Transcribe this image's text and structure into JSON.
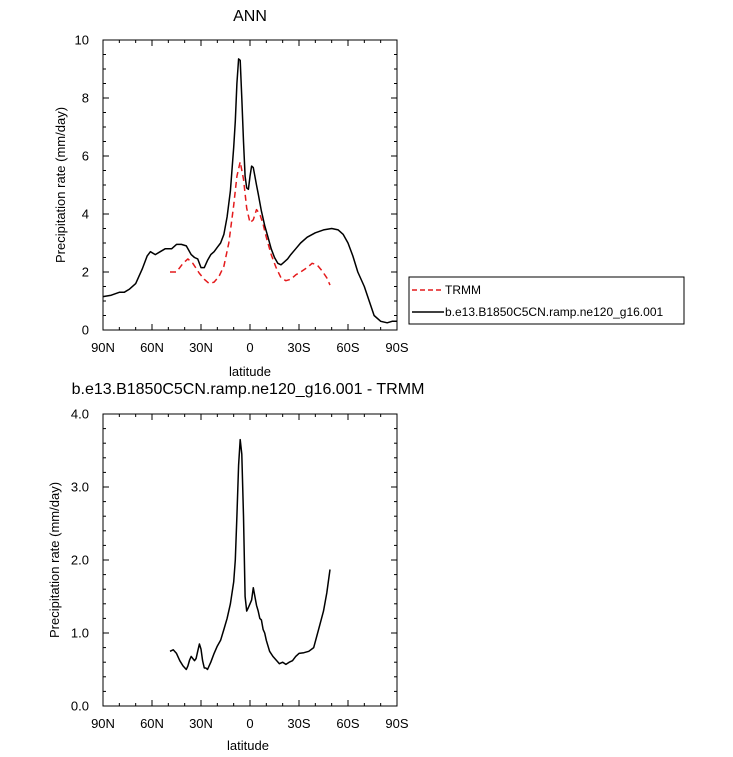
{
  "chart_data": [
    {
      "type": "line",
      "title": "ANN",
      "xlabel": "latitude",
      "ylabel": "Precipitation rate (mm/day)",
      "xlim": [
        90,
        -90
      ],
      "ylim": [
        0,
        10
      ],
      "x_ticks": [
        90,
        60,
        30,
        0,
        -30,
        -60,
        -90
      ],
      "x_tick_labels": [
        "90N",
        "60N",
        "30N",
        "0",
        "30S",
        "60S",
        "90S"
      ],
      "y_ticks": [
        0,
        2,
        4,
        6,
        8,
        10
      ],
      "y_tick_labels": [
        "0",
        "2",
        "4",
        "6",
        "8",
        "10"
      ],
      "legend": "right",
      "series": [
        {
          "name": "TRMM",
          "color": "#e41a1c",
          "dash": true,
          "x": [
            49,
            45,
            41,
            38,
            35,
            31,
            28,
            25,
            22,
            19,
            16,
            13,
            10,
            8,
            6,
            4,
            2,
            0,
            -2,
            -4,
            -6,
            -8,
            -10,
            -13,
            -16,
            -19,
            -22,
            -25,
            -28,
            -31,
            -35,
            -38,
            -41,
            -44,
            -47,
            -49
          ],
          "values": [
            2.0,
            2.0,
            2.3,
            2.45,
            2.3,
            1.95,
            1.75,
            1.6,
            1.65,
            1.85,
            2.2,
            3.0,
            4.3,
            5.3,
            5.8,
            5.2,
            4.2,
            3.7,
            3.8,
            4.15,
            4.0,
            3.65,
            3.2,
            2.6,
            2.15,
            1.8,
            1.7,
            1.75,
            1.9,
            2.0,
            2.15,
            2.3,
            2.25,
            2.05,
            1.8,
            1.55
          ]
        },
        {
          "name": "b.e13.B1850C5CN.ramp.ne120_g16.001",
          "color": "#000000",
          "dash": false,
          "x": [
            90,
            85,
            80,
            77,
            74,
            70,
            66,
            63,
            61,
            58,
            55,
            52,
            48,
            45,
            42,
            39,
            36,
            34,
            32,
            30,
            28,
            26,
            24,
            22,
            20,
            18,
            16,
            14,
            12,
            10,
            9,
            8,
            7,
            6,
            5,
            4,
            3,
            2,
            1,
            0,
            -1,
            -2,
            -3,
            -4,
            -5,
            -7,
            -9,
            -11,
            -13,
            -15,
            -17,
            -19,
            -21,
            -23,
            -25,
            -28,
            -31,
            -35,
            -40,
            -45,
            -50,
            -54,
            -57,
            -60,
            -63,
            -66,
            -70,
            -73,
            -76,
            -80,
            -84,
            -87,
            -90
          ],
          "values": [
            1.15,
            1.2,
            1.3,
            1.3,
            1.4,
            1.6,
            2.1,
            2.55,
            2.7,
            2.6,
            2.7,
            2.8,
            2.8,
            2.95,
            2.95,
            2.9,
            2.6,
            2.5,
            2.45,
            2.15,
            2.15,
            2.4,
            2.6,
            2.7,
            2.85,
            3.0,
            3.3,
            3.9,
            4.8,
            6.3,
            7.2,
            8.5,
            9.35,
            9.3,
            8.0,
            6.5,
            5.3,
            4.9,
            4.85,
            5.3,
            5.65,
            5.6,
            5.3,
            5.0,
            4.7,
            4.1,
            3.6,
            3.2,
            2.8,
            2.5,
            2.3,
            2.25,
            2.35,
            2.45,
            2.6,
            2.8,
            3.0,
            3.2,
            3.35,
            3.45,
            3.5,
            3.45,
            3.3,
            3.0,
            2.55,
            2.0,
            1.5,
            1.0,
            0.5,
            0.3,
            0.25,
            0.3,
            0.3
          ]
        }
      ]
    },
    {
      "type": "line",
      "title": "b.e13.B1850C5CN.ramp.ne120_g16.001 - TRMM",
      "xlabel": "latitude",
      "ylabel": "Precipitation rate (mm/day)",
      "xlim": [
        90,
        -90
      ],
      "ylim": [
        0,
        4
      ],
      "x_ticks": [
        90,
        60,
        30,
        0,
        -30,
        -60,
        -90
      ],
      "x_tick_labels": [
        "90N",
        "60N",
        "30N",
        "0",
        "30S",
        "60S",
        "90S"
      ],
      "y_ticks": [
        0,
        1,
        2,
        3,
        4
      ],
      "y_tick_labels": [
        "0.0",
        "1.0",
        "2.0",
        "3.0",
        "4.0"
      ],
      "series": [
        {
          "color": "#000000",
          "dash": false,
          "x": [
            49,
            47,
            45,
            43,
            41,
            39,
            38,
            37,
            36,
            35,
            34,
            33,
            32,
            31,
            30,
            29,
            28,
            27,
            26,
            24,
            22,
            20,
            18,
            16,
            14,
            12,
            10,
            9,
            8,
            7,
            6,
            5,
            4,
            3,
            2,
            1,
            0,
            -1,
            -2,
            -3,
            -4,
            -5,
            -6,
            -7,
            -8,
            -9,
            -10,
            -12,
            -14,
            -16,
            -18,
            -20,
            -22,
            -24,
            -26,
            -28,
            -30,
            -33,
            -36,
            -39,
            -42,
            -45,
            -47,
            -49
          ],
          "values": [
            0.75,
            0.77,
            0.72,
            0.62,
            0.55,
            0.5,
            0.55,
            0.63,
            0.68,
            0.65,
            0.62,
            0.65,
            0.75,
            0.85,
            0.78,
            0.62,
            0.52,
            0.52,
            0.5,
            0.6,
            0.72,
            0.82,
            0.9,
            1.05,
            1.2,
            1.4,
            1.7,
            2.0,
            2.6,
            3.3,
            3.65,
            3.45,
            2.6,
            1.5,
            1.3,
            1.35,
            1.4,
            1.45,
            1.62,
            1.5,
            1.38,
            1.3,
            1.2,
            1.18,
            1.05,
            1.0,
            0.9,
            0.75,
            0.68,
            0.63,
            0.58,
            0.6,
            0.57,
            0.6,
            0.62,
            0.68,
            0.72,
            0.73,
            0.75,
            0.8,
            1.05,
            1.3,
            1.55,
            1.87
          ]
        }
      ]
    }
  ]
}
